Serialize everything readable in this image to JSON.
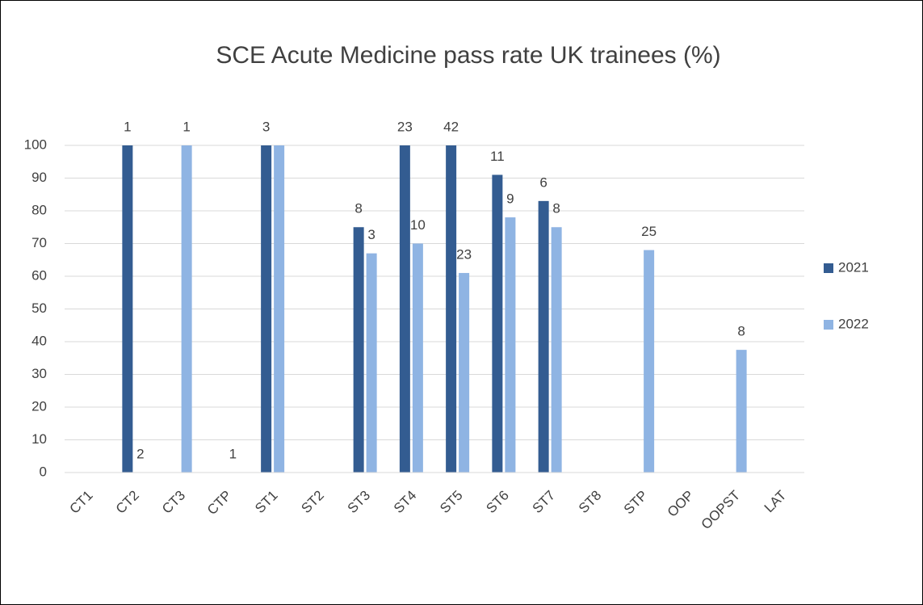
{
  "chart_data": {
    "type": "bar",
    "title": "SCE Acute Medicine pass rate UK trainees (%)",
    "categories": [
      "CT1",
      "CT2",
      "CT3",
      "CTP",
      "ST1",
      "ST2",
      "ST3",
      "ST4",
      "ST5",
      "ST6",
      "ST7",
      "ST8",
      "STP",
      "OOP",
      "OOPST",
      "LAT"
    ],
    "series": [
      {
        "name": "2021",
        "color": "#335c91",
        "values": [
          null,
          100,
          null,
          null,
          100,
          null,
          75,
          100,
          100,
          91,
          83,
          null,
          null,
          null,
          null,
          null
        ],
        "trainees": [
          null,
          1,
          null,
          null,
          3,
          null,
          8,
          23,
          42,
          11,
          6,
          null,
          null,
          null,
          null,
          null
        ]
      },
      {
        "name": "2022",
        "color": "#8fb4e3",
        "values": [
          null,
          0,
          100,
          0,
          100,
          null,
          67,
          70,
          61,
          78,
          75,
          null,
          68,
          null,
          37.5,
          null
        ],
        "trainees": [
          null,
          2,
          1,
          1,
          null,
          null,
          3,
          10,
          23,
          9,
          8,
          null,
          25,
          null,
          8,
          null
        ]
      }
    ],
    "ylim": [
      0,
      100
    ],
    "yticks": [
      0,
      10,
      20,
      30,
      40,
      50,
      60,
      70,
      80,
      90,
      100
    ],
    "grid": true,
    "legend": "right"
  }
}
